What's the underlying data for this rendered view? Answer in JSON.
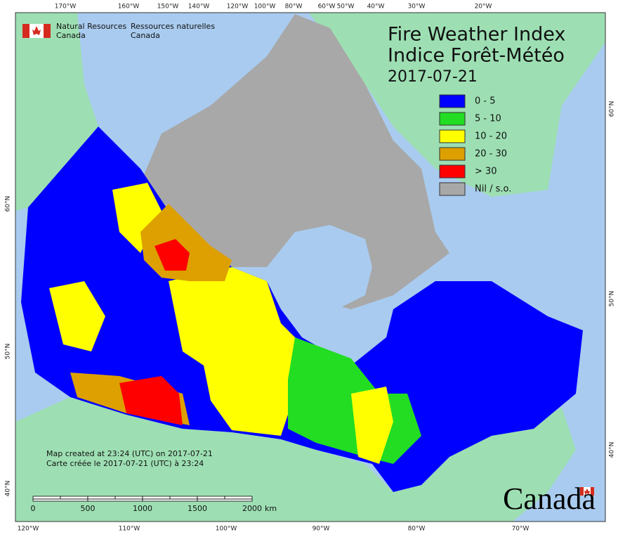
{
  "header": {
    "agency_en": [
      "Natural Resources",
      "Canada"
    ],
    "agency_fr": [
      "Ressources naturelles",
      "Canada"
    ]
  },
  "title": [
    "Fire Weather Index",
    "Indice Forêt-Météo"
  ],
  "date": "2017-07-21",
  "legend": [
    {
      "label": "0 - 5",
      "color": "#0000ff"
    },
    {
      "label": "5 - 10",
      "color": "#22dd22"
    },
    {
      "label": "10 - 20",
      "color": "#ffff00"
    },
    {
      "label": "20 - 30",
      "color": "#dda000"
    },
    {
      "label": "> 30",
      "color": "#ff0000"
    },
    {
      "label": "Nil / s.o.",
      "color": "#a8a8a8"
    }
  ],
  "top_longitudes": [
    "170°W",
    "160°W",
    "150°W",
    "140°W",
    "120°W",
    "100°W",
    "80°W",
    "60°W",
    "50°W",
    "40°W",
    "30°W",
    "20°W"
  ],
  "bottom_longitudes": [
    "120°W",
    "110°W",
    "100°W",
    "90°W",
    "80°W",
    "70°W"
  ],
  "left_latitudes": [
    "60°N",
    "50°N",
    "40°N"
  ],
  "right_latitudes": [
    "60°N",
    "50°N",
    "40°N"
  ],
  "notes": [
    "Map created at 23:24 (UTC) on 2017-07-21",
    "Carte créée le 2017-07-21 (UTC) à 23:24"
  ],
  "scale": {
    "ticks": [
      "0",
      "500",
      "1000",
      "1500",
      "2000"
    ],
    "unit": "km"
  },
  "wordmark": "Canada"
}
